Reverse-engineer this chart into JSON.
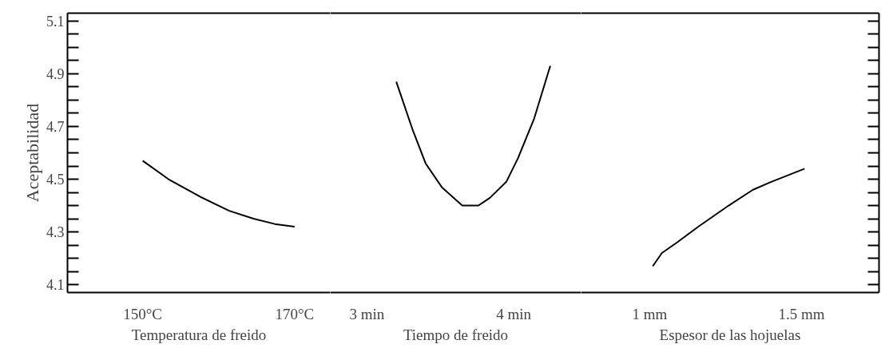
{
  "chart_data": [
    {
      "type": "line",
      "ylabel": "Aceptabilidad",
      "xlabel": "Temperatura de freido",
      "xlim": [
        140.1,
        174.7
      ],
      "ylim": [
        4.07,
        5.13
      ],
      "xticks": [
        {
          "value": 150,
          "label": "150°C"
        },
        {
          "value": 170,
          "label": "170°C"
        }
      ],
      "yticks": [
        4.1,
        {
          "value": 4.15,
          "label": null
        },
        {
          "value": 4.2,
          "label": null
        },
        {
          "value": 4.25,
          "label": null
        },
        4.3,
        {
          "value": 4.35,
          "label": null
        },
        {
          "value": 4.4,
          "label": null
        },
        {
          "value": 4.45,
          "label": null
        },
        4.5,
        {
          "value": 4.55,
          "label": null
        },
        {
          "value": 4.6,
          "label": null
        },
        {
          "value": 4.65,
          "label": null
        },
        4.7,
        {
          "value": 4.75,
          "label": null
        },
        {
          "value": 4.8,
          "label": null
        },
        {
          "value": 4.85,
          "label": null
        },
        4.9,
        {
          "value": 4.95,
          "label": null
        },
        {
          "value": 5.0,
          "label": null
        },
        {
          "value": 5.05,
          "label": null
        },
        5.1
      ],
      "series": [
        {
          "color": "#000000",
          "x": [
            150,
            153.4,
            157.8,
            161.4,
            164.6,
            167.4,
            170
          ],
          "values": [
            4.57,
            4.5,
            4.43,
            4.38,
            4.35,
            4.33,
            4.32
          ]
        }
      ],
      "marker": "none",
      "line_style": "solid"
    },
    {
      "type": "line",
      "xlabel": "Tiempo de freido",
      "tick_labels": "x",
      "xlim": [
        2.75,
        4.46
      ],
      "ylim": [
        4.07,
        5.13
      ],
      "xticks": [
        {
          "value": 3,
          "label": "3 min"
        },
        {
          "value": 4,
          "label": "4 min"
        }
      ],
      "series": [
        {
          "color": "#000000",
          "x": [
            3.2,
            3.31,
            3.4,
            3.51,
            3.65,
            3.76,
            3.84,
            3.95,
            4.03,
            4.14,
            4.25
          ],
          "values": [
            4.87,
            4.69,
            4.56,
            4.47,
            4.4,
            4.4,
            4.43,
            4.49,
            4.58,
            4.73,
            4.93
          ]
        }
      ],
      "marker": "none",
      "line_style": "solid"
    },
    {
      "type": "line",
      "xlabel": "Espesor de las hojuelas",
      "tick_labels": "x",
      "xlim": [
        0.774,
        1.755
      ],
      "ylim": [
        4.07,
        5.13
      ],
      "xticks": [
        {
          "value": 1,
          "label": "1 mm"
        },
        {
          "value": 1.5,
          "label": "1.5 mm"
        }
      ],
      "yticks": [
        {
          "value": 4.1,
          "label": null
        },
        {
          "value": 4.15,
          "label": null
        },
        {
          "value": 4.2,
          "label": null
        },
        {
          "value": 4.25,
          "label": null
        },
        {
          "value": 4.3,
          "label": null
        },
        {
          "value": 4.35,
          "label": null
        },
        {
          "value": 4.4,
          "label": null
        },
        {
          "value": 4.45,
          "label": null
        },
        {
          "value": 4.5,
          "label": null
        },
        {
          "value": 4.55,
          "label": null
        },
        {
          "value": 4.6,
          "label": null
        },
        {
          "value": 4.65,
          "label": null
        },
        {
          "value": 4.7,
          "label": null
        },
        {
          "value": 4.75,
          "label": null
        },
        {
          "value": 4.8,
          "label": null
        },
        {
          "value": 4.85,
          "label": null
        },
        {
          "value": 4.9,
          "label": null
        },
        {
          "value": 4.95,
          "label": null
        },
        {
          "value": 5.0,
          "label": null
        },
        {
          "value": 5.05,
          "label": null
        },
        {
          "value": 5.1,
          "label": null
        }
      ],
      "series": [
        {
          "color": "#000000",
          "x": [
            1.01,
            1.04,
            1.09,
            1.16,
            1.26,
            1.34,
            1.4,
            1.51
          ],
          "values": [
            4.17,
            4.22,
            4.26,
            4.32,
            4.4,
            4.46,
            4.49,
            4.54
          ]
        }
      ],
      "marker": "none",
      "line_style": "solid"
    }
  ]
}
